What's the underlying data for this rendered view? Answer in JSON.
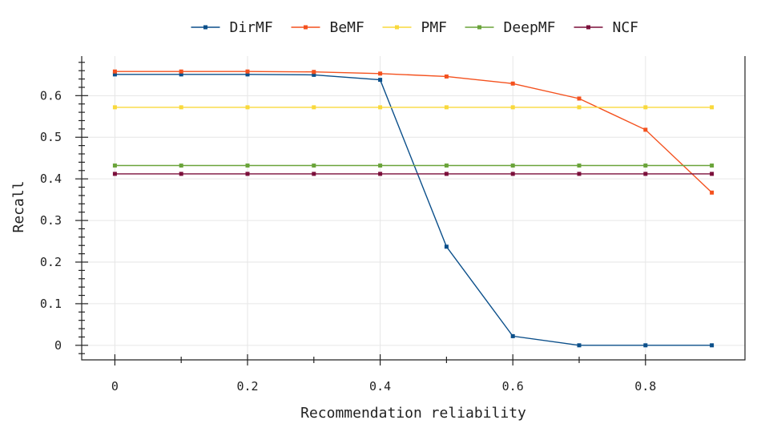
{
  "chart_data": {
    "type": "line",
    "xlabel": "Recommendation reliability",
    "ylabel": "Recall",
    "x": [
      0,
      0.1,
      0.2,
      0.3,
      0.4,
      0.5,
      0.6,
      0.7,
      0.8,
      0.9
    ],
    "xlim": [
      -0.05,
      0.95
    ],
    "ylim": [
      -0.035,
      0.695
    ],
    "xticks": [
      0,
      0.2,
      0.4,
      0.6,
      0.8
    ],
    "xtick_labels": [
      "0",
      "0.2",
      "0.4",
      "0.6",
      "0.8"
    ],
    "yticks": [
      0,
      0.1,
      0.2,
      0.3,
      0.4,
      0.5,
      0.6
    ],
    "ytick_labels": [
      "0",
      "0.1",
      "0.2",
      "0.3",
      "0.4",
      "0.5",
      "0.6"
    ],
    "grid": true,
    "legend_position": "top",
    "series": [
      {
        "name": "DirMF",
        "color": "#0b4f8a",
        "values": [
          0.651,
          0.651,
          0.651,
          0.65,
          0.638,
          0.237,
          0.022,
          0.0,
          0.0,
          0.0
        ]
      },
      {
        "name": "BeMF",
        "color": "#f4511e",
        "values": [
          0.658,
          0.658,
          0.658,
          0.657,
          0.653,
          0.646,
          0.629,
          0.593,
          0.518,
          0.367
        ]
      },
      {
        "name": "PMF",
        "color": "#f9d93c",
        "values": [
          0.572,
          0.572,
          0.572,
          0.572,
          0.572,
          0.572,
          0.572,
          0.572,
          0.572,
          0.572
        ]
      },
      {
        "name": "DeepMF",
        "color": "#6aa43a",
        "values": [
          0.432,
          0.432,
          0.432,
          0.432,
          0.432,
          0.432,
          0.432,
          0.432,
          0.432,
          0.432
        ]
      },
      {
        "name": "NCF",
        "color": "#7b0f3a",
        "values": [
          0.412,
          0.412,
          0.412,
          0.412,
          0.412,
          0.412,
          0.412,
          0.412,
          0.412,
          0.412
        ]
      }
    ]
  }
}
